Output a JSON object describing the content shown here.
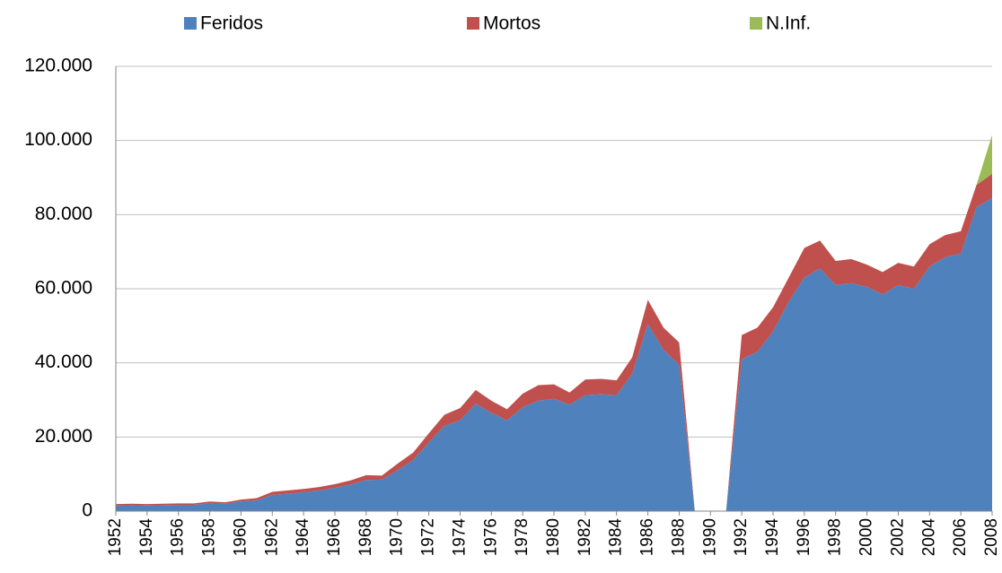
{
  "chart_data": {
    "type": "stacked_area",
    "x": [
      1952,
      1953,
      1954,
      1955,
      1956,
      1957,
      1958,
      1959,
      1960,
      1961,
      1962,
      1963,
      1964,
      1965,
      1966,
      1967,
      1968,
      1969,
      1970,
      1971,
      1972,
      1973,
      1974,
      1975,
      1976,
      1977,
      1978,
      1979,
      1980,
      1981,
      1982,
      1983,
      1984,
      1985,
      1986,
      1987,
      1988,
      1989,
      1990,
      1991,
      1992,
      1993,
      1994,
      1995,
      1996,
      1997,
      1998,
      1999,
      2000,
      2001,
      2002,
      2003,
      2004,
      2005,
      2006,
      2007,
      2008
    ],
    "series": [
      {
        "name": "Feridos",
        "color": "#4f81bd",
        "values": [
          1500,
          1600,
          1500,
          1600,
          1700,
          1700,
          2100,
          2000,
          2600,
          2900,
          4400,
          4700,
          5100,
          5600,
          6300,
          7200,
          8400,
          8500,
          11000,
          13800,
          18500,
          23000,
          24500,
          29000,
          26500,
          24500,
          28000,
          29800,
          30300,
          28700,
          31300,
          31500,
          31300,
          37000,
          50500,
          43500,
          39500,
          0,
          0,
          0,
          41000,
          43000,
          48500,
          56500,
          63000,
          65500,
          61000,
          61500,
          60500,
          58500,
          61000,
          60000,
          66000,
          68500,
          69500,
          82000,
          84500
        ]
      },
      {
        "name": "Mortos",
        "color": "#c0504d",
        "values": [
          400,
          400,
          400,
          400,
          400,
          400,
          500,
          400,
          500,
          600,
          800,
          900,
          900,
          900,
          1000,
          1100,
          1300,
          1100,
          1800,
          2000,
          2500,
          3000,
          3300,
          3700,
          3300,
          3000,
          3700,
          4200,
          3900,
          3300,
          4200,
          4200,
          4000,
          4500,
          6500,
          6000,
          6000,
          0,
          0,
          0,
          6500,
          6500,
          6500,
          6500,
          8000,
          7500,
          6500,
          6500,
          6000,
          6000,
          6000,
          6000,
          6000,
          6000,
          6000,
          6000,
          6500
        ]
      },
      {
        "name": "N.Inf.",
        "color": "#9bbb59",
        "values": [
          0,
          0,
          0,
          0,
          0,
          0,
          0,
          0,
          0,
          0,
          0,
          0,
          0,
          0,
          0,
          0,
          0,
          0,
          0,
          0,
          0,
          0,
          0,
          0,
          0,
          0,
          0,
          0,
          0,
          0,
          0,
          0,
          0,
          0,
          0,
          0,
          0,
          0,
          0,
          0,
          0,
          0,
          0,
          0,
          0,
          0,
          0,
          0,
          0,
          0,
          0,
          0,
          0,
          0,
          0,
          0,
          10500
        ]
      }
    ],
    "xlim": [
      1952,
      2008
    ],
    "xticks": [
      1952,
      1954,
      1956,
      1958,
      1960,
      1962,
      1964,
      1966,
      1968,
      1970,
      1972,
      1974,
      1976,
      1978,
      1980,
      1982,
      1984,
      1986,
      1988,
      1990,
      1992,
      1994,
      1996,
      1998,
      2000,
      2002,
      2004,
      2006,
      2008
    ],
    "ylim": [
      0,
      120000
    ],
    "yticks": [
      0,
      {
        "value": 20000,
        "label": "20.000"
      },
      {
        "value": 40000,
        "label": "40.000"
      },
      {
        "value": 60000,
        "label": "60.000"
      },
      {
        "value": 80000,
        "label": "80.000"
      },
      {
        "value": 100000,
        "label": "100.000"
      },
      {
        "value": 120000,
        "label": "120.000"
      }
    ],
    "grid": true,
    "legend": "top"
  }
}
